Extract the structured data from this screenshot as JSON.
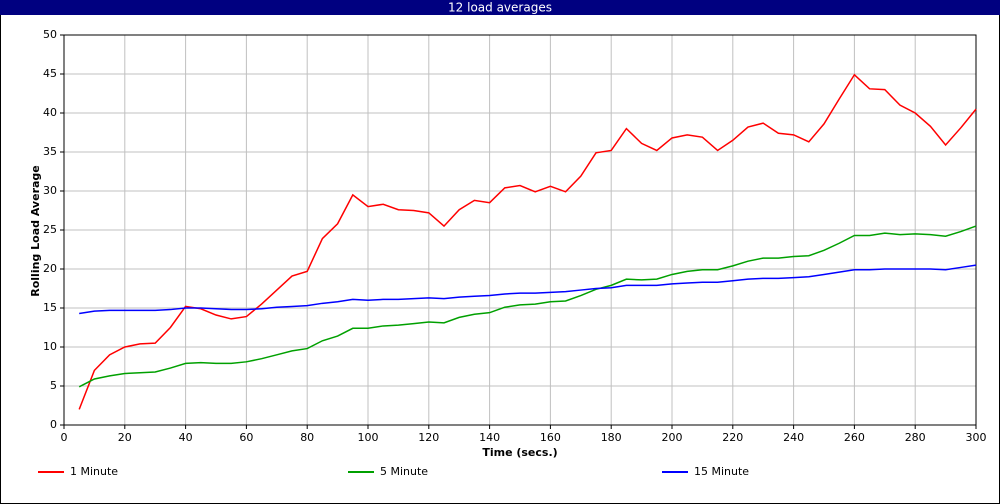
{
  "chart_data": {
    "type": "line",
    "title": "12 load averages",
    "x_label": "Time (secs.)",
    "y_label": "Rolling Load Average",
    "x": [
      5,
      10,
      15,
      20,
      25,
      30,
      35,
      40,
      45,
      50,
      55,
      60,
      65,
      70,
      75,
      80,
      85,
      90,
      95,
      100,
      105,
      110,
      115,
      120,
      125,
      130,
      135,
      140,
      145,
      150,
      155,
      160,
      165,
      170,
      175,
      180,
      185,
      190,
      195,
      200,
      205,
      210,
      215,
      220,
      225,
      230,
      235,
      240,
      245,
      250,
      255,
      260,
      265,
      270,
      275,
      280,
      285,
      290,
      295,
      300
    ],
    "series": [
      {
        "name": "1 Minute",
        "color": "#ff0000",
        "values": [
          2,
          7,
          9,
          10,
          10.4,
          10.5,
          12.5,
          15.2,
          14.9,
          14.1,
          13.6,
          13.9,
          15.5,
          17.3,
          19.1,
          19.7,
          23.9,
          25.8,
          29.5,
          28,
          28.3,
          27.6,
          27.5,
          27.2,
          25.5,
          27.6,
          28.8,
          28.5,
          30.4,
          30.7,
          29.9,
          30.6,
          29.9,
          31.9,
          34.9,
          35.2,
          38,
          36.1,
          35.2,
          36.8,
          37.2,
          36.9,
          35.2,
          36.5,
          38.2,
          38.7,
          37.4,
          37.2,
          36.3,
          38.6,
          41.8,
          44.9,
          43.1,
          43,
          41,
          40,
          38.3,
          35.9,
          38.1,
          40.5
        ]
      },
      {
        "name": "5 Minute",
        "color": "#00a000",
        "values": [
          4.9,
          5.9,
          6.3,
          6.6,
          6.7,
          6.8,
          7.3,
          7.9,
          8,
          7.9,
          7.9,
          8.1,
          8.5,
          9,
          9.5,
          9.8,
          10.8,
          11.4,
          12.4,
          12.4,
          12.7,
          12.8,
          13,
          13.2,
          13.1,
          13.8,
          14.2,
          14.4,
          15.1,
          15.4,
          15.5,
          15.8,
          15.9,
          16.6,
          17.4,
          17.9,
          18.7,
          18.6,
          18.7,
          19.3,
          19.7,
          19.9,
          19.9,
          20.4,
          21,
          21.4,
          21.4,
          21.6,
          21.7,
          22.4,
          23.3,
          24.3,
          24.3,
          24.6,
          24.4,
          24.5,
          24.4,
          24.2,
          24.8,
          25.5
        ]
      },
      {
        "name": "15 Minute",
        "color": "#0000ff",
        "values": [
          14.3,
          14.6,
          14.7,
          14.7,
          14.7,
          14.7,
          14.8,
          15,
          15,
          14.9,
          14.8,
          14.8,
          14.9,
          15.1,
          15.2,
          15.3,
          15.6,
          15.8,
          16.1,
          16,
          16.1,
          16.1,
          16.2,
          16.3,
          16.2,
          16.4,
          16.5,
          16.6,
          16.8,
          16.9,
          16.9,
          17,
          17.1,
          17.3,
          17.5,
          17.6,
          17.9,
          17.9,
          17.9,
          18.1,
          18.2,
          18.3,
          18.3,
          18.5,
          18.7,
          18.8,
          18.8,
          18.9,
          19,
          19.3,
          19.6,
          19.9,
          19.9,
          20,
          20,
          20,
          20,
          19.9,
          20.2,
          20.5
        ]
      }
    ],
    "xlim": [
      0,
      300
    ],
    "xticks": [
      0,
      20,
      40,
      60,
      80,
      100,
      120,
      140,
      160,
      180,
      200,
      220,
      240,
      260,
      280,
      300
    ],
    "ylim": [
      0,
      50
    ],
    "yticks": [
      0,
      5,
      10,
      15,
      20,
      25,
      30,
      35,
      40,
      45,
      50
    ],
    "grid": true
  }
}
